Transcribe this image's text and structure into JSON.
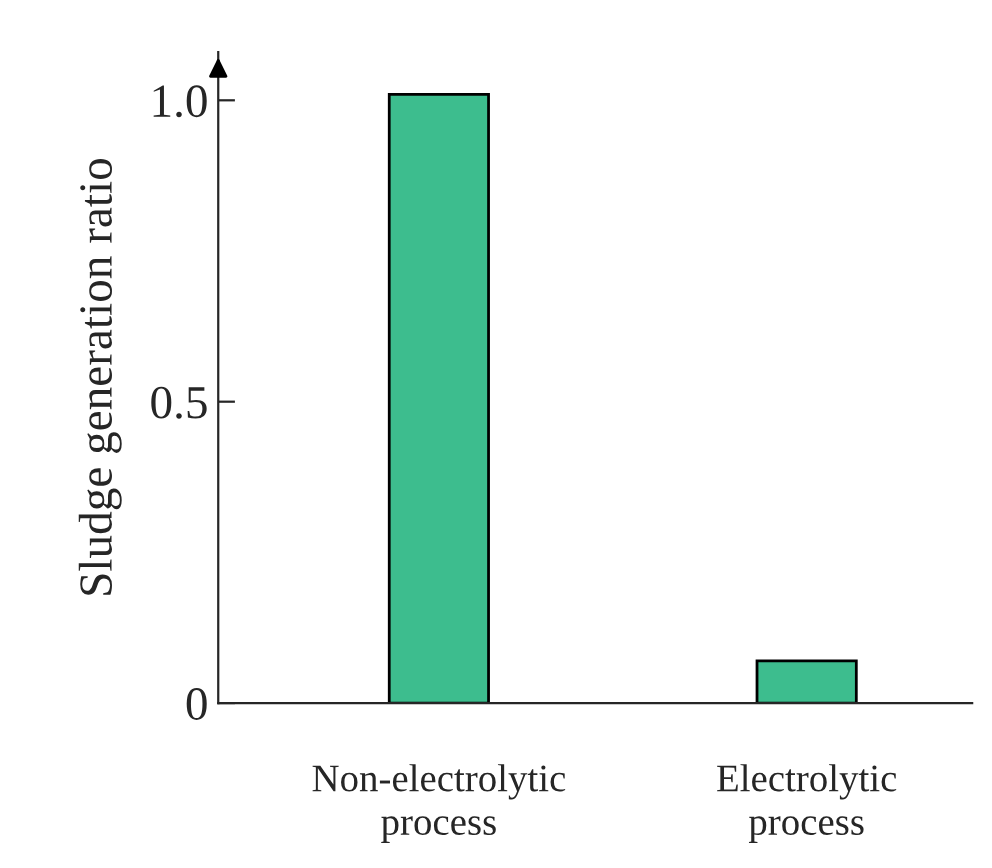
{
  "chart_data": {
    "type": "bar",
    "ylabel": "Sludge generation ratio",
    "categories": [
      "Non-electrolytic process",
      "Electrolytic process"
    ],
    "values": [
      1.01,
      0.07
    ],
    "color": "#3dbd8e",
    "ylim": [
      0,
      1.08
    ],
    "yticks": [
      0,
      0.5,
      {
        "value": 1.0,
        "label": "1.0"
      }
    ],
    "grid": false
  }
}
